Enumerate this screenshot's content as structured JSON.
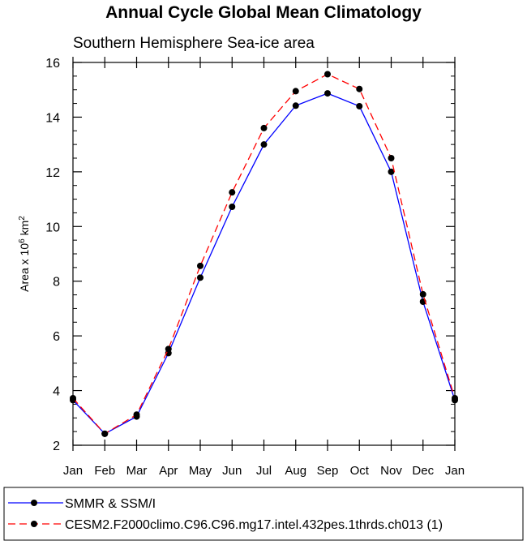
{
  "chart_data": {
    "type": "line",
    "title": "Annual Cycle Global Mean Climatology",
    "subtitle": "Southern Hemisphere Sea-ice area",
    "ylabel": {
      "prefix": "Area x 10",
      "exp": "6",
      "unit": " km",
      "unit_exp": "2"
    },
    "xlabel": "",
    "categories": [
      "Jan",
      "Feb",
      "Mar",
      "Apr",
      "May",
      "Jun",
      "Jul",
      "Aug",
      "Sep",
      "Oct",
      "Nov",
      "Dec",
      "Jan"
    ],
    "ylim": [
      2,
      16
    ],
    "yticks": [
      2,
      4,
      6,
      8,
      10,
      12,
      14,
      16
    ],
    "series": [
      {
        "name": "SMMR & SSM/I",
        "color": "#0000ff",
        "dash": "solid",
        "values": [
          3.65,
          2.42,
          3.05,
          5.37,
          8.13,
          10.72,
          13.0,
          14.42,
          14.87,
          14.4,
          12.0,
          7.25,
          3.65
        ]
      },
      {
        "name": "CESM2.F2000climo.C96.C96.mg17.intel.432pes.1thrds.ch013 (1)",
        "color": "#ff0000",
        "dash": "dashed",
        "values": [
          3.72,
          2.42,
          3.12,
          5.52,
          8.56,
          11.25,
          13.6,
          14.95,
          15.57,
          15.03,
          12.5,
          7.52,
          3.72
        ]
      }
    ]
  }
}
